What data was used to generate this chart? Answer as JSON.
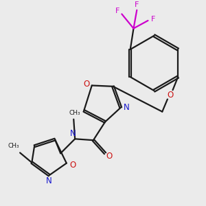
{
  "background_color": "#ebebeb",
  "bond_color": "#1a1a1a",
  "nitrogen_color": "#1414cc",
  "oxygen_color": "#cc1414",
  "fluorine_color": "#cc00cc",
  "line_width": 1.6,
  "figsize": [
    3.0,
    3.0
  ],
  "dpi": 100,
  "xlim": [
    0,
    300
  ],
  "ylim": [
    0,
    300
  ]
}
